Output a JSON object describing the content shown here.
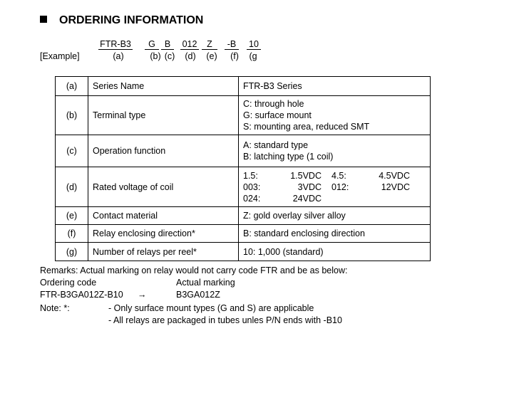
{
  "title": "ORDERING INFORMATION",
  "example": {
    "label": "[Example]",
    "codes": [
      "FTR-B3",
      "G",
      "B",
      "012",
      "Z",
      "-B",
      "10"
    ],
    "letters": [
      "(a)",
      "(b)",
      "(c)",
      "(d)",
      "(e)",
      "(f)",
      "(g"
    ]
  },
  "table": [
    {
      "key": "(a)",
      "name": "Series Name",
      "values": [
        "FTR-B3 Series"
      ]
    },
    {
      "key": "(b)",
      "name": "Terminal type",
      "values": [
        "C: through hole",
        "G: surface mount",
        "S: mounting area, reduced SMT"
      ]
    },
    {
      "key": "(c)",
      "name": "Operation function",
      "values": [
        "A: standard type",
        "B: latching type (1 coil)"
      ]
    },
    {
      "key": "(d)",
      "name": "Rated voltage of coil",
      "voltages": [
        [
          "1.5:",
          "1.5VDC",
          "4.5:",
          "4.5VDC"
        ],
        [
          "003:",
          "3VDC",
          "012:",
          "12VDC"
        ],
        [
          "024:",
          "24VDC",
          "",
          ""
        ]
      ]
    },
    {
      "key": "(e)",
      "name": "Contact material",
      "values": [
        "Z: gold overlay silver alloy"
      ]
    },
    {
      "key": "(f)",
      "name": "Relay enclosing direction*",
      "values": [
        "B: standard enclosing direction"
      ]
    },
    {
      "key": "(g)",
      "name": "Number of relays per reel*",
      "values": [
        "10: 1,000 (standard)"
      ]
    }
  ],
  "remarks": {
    "line": "Remarks: Actual marking on relay would not carry code FTR and be as below:",
    "ordering_code_label": "Ordering code",
    "actual_marking_label": "Actual marking",
    "ordering_code": "FTR-B3GA012Z-B10",
    "arrow": "→",
    "actual_marking": "B3GA012Z"
  },
  "note": {
    "label": "Note: *:",
    "items": [
      "- Only surface mount types (G and S) are applicable",
      "- All relays are packaged in tubes unles P/N ends with -B10"
    ]
  }
}
